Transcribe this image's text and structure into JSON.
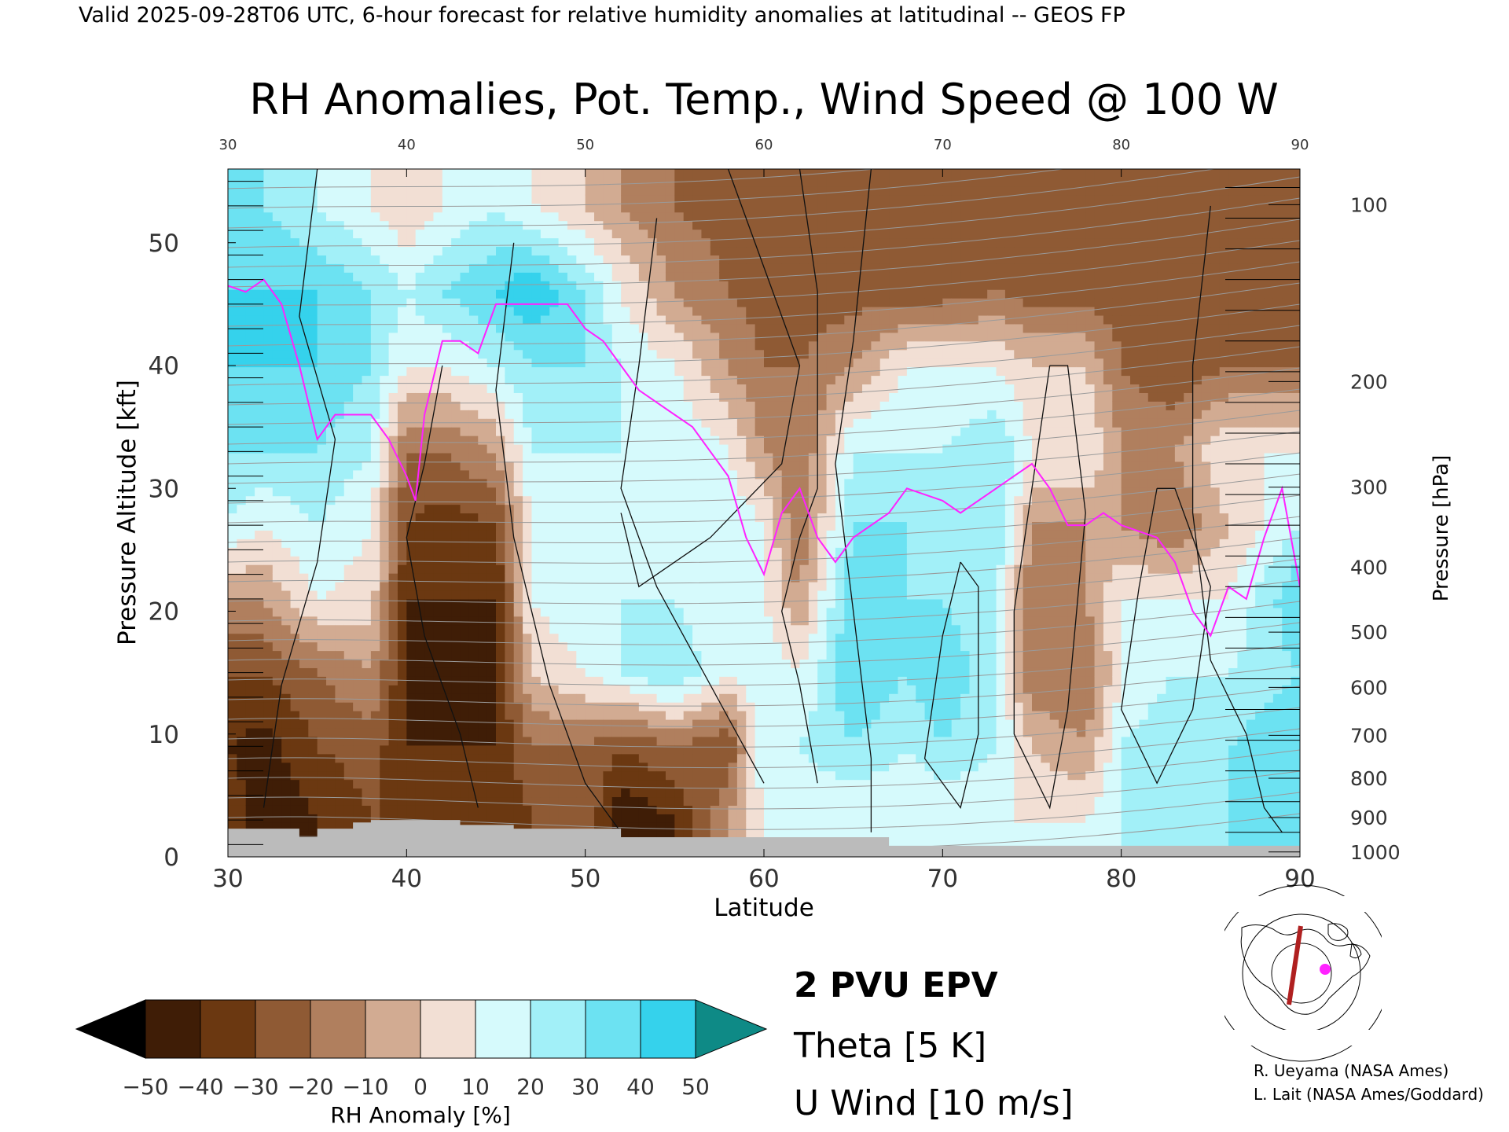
{
  "header": "Valid 2025-09-28T06 UTC, 6-hour forecast for relative humidity anomalies at latitudinal -- GEOS FP",
  "chart_data": {
    "type": "heatmap",
    "title": "RH Anomalies, Pot. Temp., Wind Speed @ 100 W",
    "xlabel": "Latitude",
    "ylabel": "Pressure Altitude [kft]",
    "y2label": "Pressure [hPa]",
    "xlim": [
      30,
      90
    ],
    "ylim": [
      0,
      56
    ],
    "x_ticks": [
      30,
      40,
      50,
      60,
      70,
      80,
      90
    ],
    "top_ticks": [
      30,
      40,
      50,
      60,
      70,
      80,
      90
    ],
    "y_ticks": [
      0,
      10,
      20,
      30,
      40,
      50
    ],
    "pressure_ticks": [
      {
        "hpa": 100,
        "kft": 53.1
      },
      {
        "hpa": 200,
        "kft": 38.7
      },
      {
        "hpa": 300,
        "kft": 30.1
      },
      {
        "hpa": 400,
        "kft": 23.6
      },
      {
        "hpa": 500,
        "kft": 18.3
      },
      {
        "hpa": 600,
        "kft": 13.8
      },
      {
        "hpa": 700,
        "kft": 9.9
      },
      {
        "hpa": 800,
        "kft": 6.4
      },
      {
        "hpa": 900,
        "kft": 3.2
      },
      {
        "hpa": 1000,
        "kft": 0.4
      }
    ],
    "colorbar": {
      "label": "RH Anomaly [%]",
      "ticks": [
        -50,
        -40,
        -30,
        -20,
        -10,
        0,
        10,
        20,
        30,
        40,
        50
      ],
      "colors": [
        "#000000",
        "#3f1d06",
        "#6b3811",
        "#8f5a34",
        "#b07f5e",
        "#d2ab92",
        "#f2dfd4",
        "#d6fafc",
        "#a2f0f8",
        "#6ce2f2",
        "#35d2ec",
        "#16b8de",
        "#0a8fb0",
        "#0e8a86"
      ]
    },
    "anomaly_columns": [
      {
        "lat": 30,
        "values": [
          -30,
          -40,
          -30,
          -10,
          20,
          30,
          40,
          40,
          30
        ]
      },
      {
        "lat": 32,
        "values": [
          -50,
          -45,
          -30,
          -10,
          10,
          30,
          40,
          40,
          30
        ]
      },
      {
        "lat": 35,
        "values": [
          -40,
          -30,
          -20,
          10,
          20,
          30,
          40,
          40,
          20
        ]
      },
      {
        "lat": 38,
        "values": [
          -30,
          -25,
          -10,
          5,
          10,
          20,
          30,
          30,
          10
        ]
      },
      {
        "lat": 40,
        "values": [
          -30,
          -40,
          -40,
          -40,
          -30,
          -20,
          10,
          20,
          0
        ]
      },
      {
        "lat": 42,
        "values": [
          -30,
          -40,
          -45,
          -40,
          -35,
          -20,
          10,
          30,
          10
        ]
      },
      {
        "lat": 45,
        "values": [
          -40,
          -40,
          -40,
          -40,
          -30,
          -10,
          20,
          40,
          20
        ]
      },
      {
        "lat": 47,
        "values": [
          -30,
          -20,
          0,
          10,
          10,
          20,
          30,
          50,
          10
        ]
      },
      {
        "lat": 50,
        "values": [
          -20,
          -20,
          10,
          20,
          20,
          20,
          30,
          30,
          0
        ]
      },
      {
        "lat": 52,
        "values": [
          -50,
          -30,
          20,
          20,
          15,
          20,
          20,
          10,
          -10
        ]
      },
      {
        "lat": 55,
        "values": [
          -40,
          -20,
          30,
          20,
          20,
          20,
          10,
          -10,
          -20
        ]
      },
      {
        "lat": 58,
        "values": [
          -10,
          -30,
          10,
          10,
          20,
          10,
          -10,
          -20,
          -25
        ]
      },
      {
        "lat": 60,
        "values": [
          10,
          20,
          20,
          10,
          10,
          -10,
          -20,
          -25,
          -25
        ]
      },
      {
        "lat": 62,
        "values": [
          10,
          20,
          10,
          -10,
          -20,
          -20,
          -20,
          -25,
          -25
        ]
      },
      {
        "lat": 65,
        "values": [
          10,
          30,
          40,
          40,
          30,
          20,
          -10,
          -25,
          -25
        ]
      },
      {
        "lat": 68,
        "values": [
          10,
          20,
          30,
          30,
          30,
          20,
          10,
          -25,
          -25
        ]
      },
      {
        "lat": 70,
        "values": [
          10,
          30,
          40,
          30,
          20,
          20,
          10,
          -25,
          -25
        ]
      },
      {
        "lat": 73,
        "values": [
          10,
          20,
          20,
          20,
          30,
          30,
          10,
          -20,
          -25
        ]
      },
      {
        "lat": 75,
        "values": [
          10,
          0,
          -20,
          -20,
          -10,
          10,
          0,
          -25,
          -25
        ]
      },
      {
        "lat": 78,
        "values": [
          10,
          -10,
          -20,
          -10,
          -10,
          10,
          0,
          -25,
          -25
        ]
      },
      {
        "lat": 80,
        "values": [
          20,
          20,
          10,
          10,
          -10,
          -10,
          -20,
          -25,
          -25
        ]
      },
      {
        "lat": 83,
        "values": [
          20,
          30,
          20,
          10,
          -20,
          -10,
          -30,
          -25,
          -25
        ]
      },
      {
        "lat": 86,
        "values": [
          30,
          30,
          20,
          10,
          0,
          10,
          -20,
          -25,
          -25
        ]
      },
      {
        "lat": 90,
        "values": [
          30,
          40,
          30,
          40,
          20,
          10,
          -20,
          -25,
          -25
        ]
      }
    ],
    "anomaly_levels_kft": [
      3,
      9,
      15,
      21,
      27,
      33,
      40,
      46,
      53
    ],
    "terrain_kft": [
      [
        30,
        2.3
      ],
      [
        33,
        2.3
      ],
      [
        34,
        1.6
      ],
      [
        35,
        2.3
      ],
      [
        37,
        2.8
      ],
      [
        38,
        3.0
      ],
      [
        40,
        3.0
      ],
      [
        43,
        2.6
      ],
      [
        46,
        2.3
      ],
      [
        50,
        2.3
      ],
      [
        52,
        1.6
      ],
      [
        54,
        1.6
      ],
      [
        60,
        1.6
      ],
      [
        66,
        1.6
      ],
      [
        67,
        0.9
      ],
      [
        90,
        0.9
      ]
    ],
    "epv_2pvu": [
      [
        30,
        46.5
      ],
      [
        31,
        46
      ],
      [
        32,
        47
      ],
      [
        33,
        45
      ],
      [
        34,
        40
      ],
      [
        35,
        34
      ],
      [
        36,
        36
      ],
      [
        38,
        36
      ],
      [
        39,
        34
      ],
      [
        40,
        31
      ],
      [
        40.5,
        29
      ],
      [
        41,
        36
      ],
      [
        42,
        42
      ],
      [
        43,
        42
      ],
      [
        44,
        41
      ],
      [
        45,
        45
      ],
      [
        47,
        45
      ],
      [
        49,
        45
      ],
      [
        50,
        43
      ],
      [
        51,
        42
      ],
      [
        52,
        40
      ],
      [
        53,
        38
      ],
      [
        54,
        37
      ],
      [
        55,
        36
      ],
      [
        56,
        35
      ],
      [
        57,
        33
      ],
      [
        58,
        31
      ],
      [
        59,
        26
      ],
      [
        60,
        23
      ],
      [
        61,
        28
      ],
      [
        62,
        30
      ],
      [
        63,
        26
      ],
      [
        64,
        24
      ],
      [
        65,
        26
      ],
      [
        67,
        28
      ],
      [
        68,
        30
      ],
      [
        70,
        29
      ],
      [
        71,
        28
      ],
      [
        73,
        30
      ],
      [
        74,
        31
      ],
      [
        75,
        32
      ],
      [
        76,
        30
      ],
      [
        77,
        27
      ],
      [
        78,
        27
      ],
      [
        79,
        28
      ],
      [
        80,
        27
      ],
      [
        82,
        26
      ],
      [
        83,
        24
      ],
      [
        84,
        20
      ],
      [
        85,
        18
      ],
      [
        86,
        22
      ],
      [
        87,
        21
      ],
      [
        88,
        26
      ],
      [
        89,
        30
      ],
      [
        90,
        22
      ]
    ],
    "legend": [
      "2 PVU EPV",
      "Theta [5 K]",
      "U Wind [10 m/s]"
    ],
    "legend_colors": [
      "#ff22ff",
      "#aaaaaa",
      "#000000"
    ],
    "credits": [
      "R. Ueyama (NASA Ames)",
      "L. Lait (NASA Ames/Goddard)"
    ]
  }
}
